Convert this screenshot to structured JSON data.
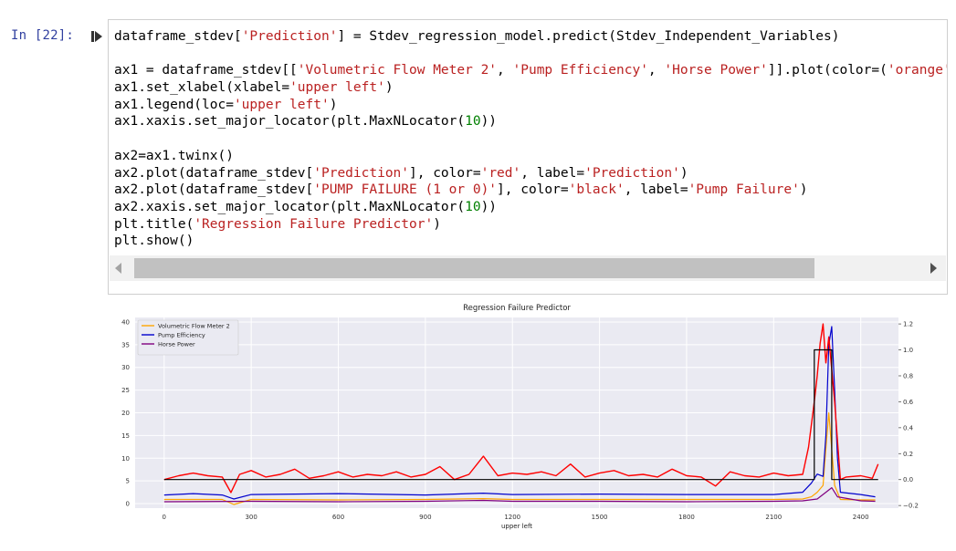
{
  "cell": {
    "prompt": "In [22]:",
    "code_lines": [
      [
        {
          "t": "dataframe_stdev["
        },
        {
          "t": "'Prediction'",
          "c": "str"
        },
        {
          "t": "] = Stdev_regression_model.predict(Stdev_Independent_Variables)"
        }
      ],
      [],
      [
        {
          "t": "ax1 = dataframe_stdev[["
        },
        {
          "t": "'Volumetric Flow Meter 2'",
          "c": "str"
        },
        {
          "t": ", "
        },
        {
          "t": "'Pump Efficiency'",
          "c": "str"
        },
        {
          "t": ", "
        },
        {
          "t": "'Horse Power'",
          "c": "str"
        },
        {
          "t": "]].plot(color="
        },
        {
          "t": "("
        },
        {
          "t": "'orange'",
          "c": "str"
        },
        {
          "t": ", "
        },
        {
          "t": "'",
          "c": "str"
        }
      ],
      [
        {
          "t": "ax1.set_xlabel(xlabel="
        },
        {
          "t": "'upper left'",
          "c": "str"
        },
        {
          "t": ")"
        }
      ],
      [
        {
          "t": "ax1.legend(loc="
        },
        {
          "t": "'upper left'",
          "c": "str"
        },
        {
          "t": ")"
        }
      ],
      [
        {
          "t": "ax1.xaxis.set_major_locator(plt.MaxNLocator("
        },
        {
          "t": "10",
          "c": "num"
        },
        {
          "t": "))"
        }
      ],
      [],
      [
        {
          "t": "ax2=ax1.twinx()"
        }
      ],
      [
        {
          "t": "ax2.plot(dataframe_stdev["
        },
        {
          "t": "'Prediction'",
          "c": "str"
        },
        {
          "t": "], color="
        },
        {
          "t": "'red'",
          "c": "str"
        },
        {
          "t": ", label="
        },
        {
          "t": "'Prediction'",
          "c": "str"
        },
        {
          "t": ")"
        }
      ],
      [
        {
          "t": "ax2.plot(dataframe_stdev["
        },
        {
          "t": "'PUMP FAILURE (1 or 0)'",
          "c": "str"
        },
        {
          "t": "], color="
        },
        {
          "t": "'black'",
          "c": "str"
        },
        {
          "t": ", label="
        },
        {
          "t": "'Pump Failure'",
          "c": "str"
        },
        {
          "t": ")"
        }
      ],
      [
        {
          "t": "ax2.xaxis.set_major_locator(plt.MaxNLocator("
        },
        {
          "t": "10",
          "c": "num"
        },
        {
          "t": "))"
        }
      ],
      [
        {
          "t": "plt.title("
        },
        {
          "t": "'Regression Failure Predictor'",
          "c": "str"
        },
        {
          "t": ")"
        }
      ],
      [
        {
          "t": "plt.show()"
        }
      ]
    ]
  },
  "colors": {
    "prompt": "#303f9f",
    "string": "#ba2121",
    "number": "#008000",
    "flow": "#ffa500",
    "efficiency": "#0000cd",
    "horse": "#800080",
    "prediction": "#ff0000",
    "failure": "#000000"
  },
  "icons": {
    "run": "step-forward-icon",
    "scroll_left": "arrow-left-icon",
    "scroll_right": "arrow-right-icon"
  },
  "chart_data": {
    "type": "line",
    "title": "Regression Failure Predictor",
    "xlabel": "upper left",
    "ylabel": "",
    "xlim": [
      -100,
      2530
    ],
    "ylim": [
      -1,
      41
    ],
    "y2lim": [
      -0.22,
      1.25
    ],
    "xticks": [
      0,
      300,
      600,
      900,
      1200,
      1500,
      1800,
      2100,
      2400
    ],
    "yticks": [
      0,
      5,
      10,
      15,
      20,
      25,
      30,
      35,
      40
    ],
    "y2ticks": [
      -0.2,
      0.0,
      0.2,
      0.4,
      0.6,
      0.8,
      1.0,
      1.2
    ],
    "y2tick_labels": [
      "−0.2",
      "0.0",
      "0.2",
      "0.4",
      "0.6",
      "0.8",
      "1.0",
      "1.2"
    ],
    "grid": true,
    "legend_position": "top-left",
    "series": [
      {
        "name": "Volumetric Flow Meter 2",
        "axis": "left",
        "color": "#ffa500",
        "x": [
          0,
          200,
          240,
          300,
          600,
          900,
          1100,
          1200,
          1500,
          1800,
          2100,
          2200,
          2230,
          2250,
          2270,
          2280,
          2290,
          2300,
          2310,
          2330,
          2400,
          2450
        ],
        "y": [
          0.9,
          0.9,
          -0.2,
          0.9,
          0.8,
          0.9,
          1.1,
          0.9,
          0.9,
          0.9,
          0.9,
          1.0,
          1.5,
          2.5,
          4.0,
          12.0,
          20.0,
          12.0,
          4.0,
          0.9,
          0.8,
          0.8
        ]
      },
      {
        "name": "Pump Efficiency",
        "axis": "left",
        "color": "#0000cd",
        "x": [
          0,
          100,
          200,
          240,
          300,
          600,
          900,
          1100,
          1200,
          1500,
          1800,
          2100,
          2200,
          2230,
          2250,
          2270,
          2280,
          2290,
          2300,
          2310,
          2320,
          2330,
          2400,
          2450
        ],
        "y": [
          1.9,
          2.2,
          1.9,
          1.0,
          2.0,
          2.2,
          1.9,
          2.3,
          2.0,
          2.1,
          2.0,
          2.0,
          2.5,
          4.5,
          6.5,
          6.0,
          15.0,
          35.0,
          39.0,
          25.0,
          10.0,
          2.5,
          2.0,
          1.5
        ]
      },
      {
        "name": "Horse Power",
        "axis": "left",
        "color": "#800080",
        "x": [
          0,
          300,
          600,
          900,
          1100,
          1200,
          1500,
          1800,
          2100,
          2200,
          2250,
          2280,
          2300,
          2320,
          2400,
          2450
        ],
        "y": [
          0.4,
          0.5,
          0.4,
          0.5,
          0.7,
          0.5,
          0.5,
          0.4,
          0.5,
          0.6,
          1.0,
          2.5,
          3.5,
          1.5,
          0.6,
          0.5
        ]
      },
      {
        "name": "Prediction",
        "axis": "right",
        "color": "#ff0000",
        "x": [
          0,
          50,
          100,
          150,
          200,
          230,
          260,
          300,
          350,
          400,
          450,
          500,
          550,
          600,
          650,
          700,
          750,
          800,
          850,
          900,
          950,
          1000,
          1050,
          1100,
          1150,
          1200,
          1250,
          1300,
          1350,
          1400,
          1450,
          1500,
          1550,
          1600,
          1650,
          1700,
          1750,
          1800,
          1850,
          1900,
          1950,
          2000,
          2050,
          2100,
          2150,
          2200,
          2220,
          2240,
          2250,
          2260,
          2270,
          2280,
          2290,
          2300,
          2310,
          2320,
          2330,
          2350,
          2400,
          2440,
          2460
        ],
        "y": [
          0.0,
          0.03,
          0.05,
          0.03,
          0.02,
          -0.1,
          0.04,
          0.07,
          0.02,
          0.04,
          0.08,
          0.01,
          0.03,
          0.06,
          0.02,
          0.04,
          0.03,
          0.06,
          0.02,
          0.04,
          0.1,
          0.0,
          0.04,
          0.18,
          0.03,
          0.05,
          0.04,
          0.06,
          0.03,
          0.12,
          0.02,
          0.05,
          0.07,
          0.03,
          0.04,
          0.02,
          0.08,
          0.03,
          0.02,
          -0.05,
          0.06,
          0.03,
          0.02,
          0.05,
          0.03,
          0.04,
          0.25,
          0.6,
          0.8,
          1.05,
          1.2,
          0.9,
          1.1,
          0.85,
          0.6,
          0.3,
          0.0,
          0.02,
          0.03,
          0.01,
          0.12
        ]
      },
      {
        "name": "Pump Failure",
        "axis": "right",
        "color": "#000000",
        "x": [
          0,
          2240,
          2240,
          2300,
          2300,
          2460
        ],
        "y": [
          0,
          0,
          1,
          1,
          0,
          0
        ]
      }
    ]
  }
}
